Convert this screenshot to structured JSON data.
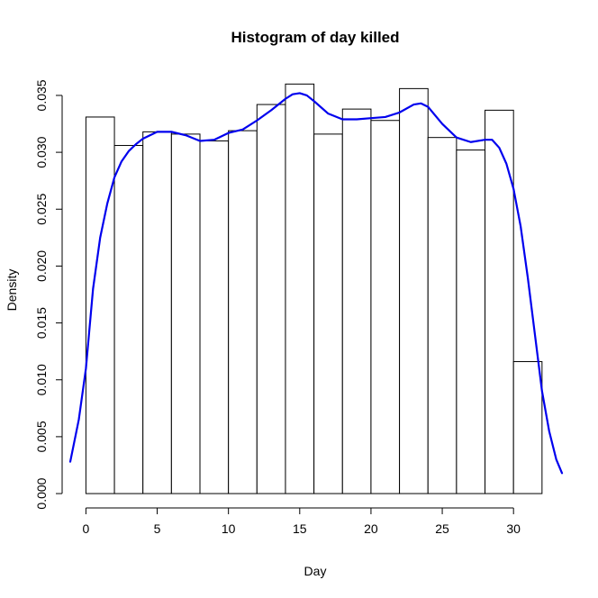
{
  "chart_data": {
    "type": "histogram",
    "title": "Histogram of day killed",
    "xlabel": "Day",
    "ylabel": "Density",
    "xlim": [
      -1.1,
      33.4
    ],
    "ylim": [
      -0.0015,
      0.0365
    ],
    "x_ticks": [
      0,
      5,
      10,
      15,
      20,
      25,
      30
    ],
    "x_tick_labels": [
      "0",
      "5",
      "10",
      "15",
      "20",
      "25",
      "30"
    ],
    "y_ticks": [
      0.0,
      0.005,
      0.01,
      0.015,
      0.02,
      0.025,
      0.03,
      0.035
    ],
    "y_tick_labels": [
      "0.000",
      "0.005",
      "0.010",
      "0.015",
      "0.020",
      "0.025",
      "0.030",
      "0.035"
    ],
    "bins": [
      {
        "x0": 0,
        "x1": 2,
        "density": 0.0331
      },
      {
        "x0": 2,
        "x1": 4,
        "density": 0.0306
      },
      {
        "x0": 4,
        "x1": 6,
        "density": 0.0318
      },
      {
        "x0": 6,
        "x1": 8,
        "density": 0.0316
      },
      {
        "x0": 8,
        "x1": 10,
        "density": 0.031
      },
      {
        "x0": 10,
        "x1": 12,
        "density": 0.0319
      },
      {
        "x0": 12,
        "x1": 14,
        "density": 0.0342
      },
      {
        "x0": 14,
        "x1": 16,
        "density": 0.036
      },
      {
        "x0": 16,
        "x1": 18,
        "density": 0.0316
      },
      {
        "x0": 18,
        "x1": 20,
        "density": 0.0338
      },
      {
        "x0": 20,
        "x1": 22,
        "density": 0.0328
      },
      {
        "x0": 22,
        "x1": 24,
        "density": 0.0356
      },
      {
        "x0": 24,
        "x1": 26,
        "density": 0.0313
      },
      {
        "x0": 26,
        "x1": 28,
        "density": 0.0302
      },
      {
        "x0": 28,
        "x1": 30,
        "density": 0.0337
      },
      {
        "x0": 30,
        "x1": 32,
        "density": 0.0116
      }
    ],
    "density_curve": {
      "color": "#0000ee",
      "x": [
        -1.1,
        -0.5,
        0,
        0.5,
        1,
        1.5,
        2,
        2.5,
        3,
        3.5,
        4,
        5,
        6,
        7,
        8,
        9,
        10,
        11,
        12,
        13,
        14,
        14.5,
        15,
        15.5,
        16,
        17,
        18,
        19,
        20,
        21,
        22,
        23,
        23.5,
        24,
        25,
        26,
        27,
        28,
        28.5,
        29,
        29.5,
        30,
        30.5,
        31,
        31.5,
        32,
        32.5,
        33,
        33.4
      ],
      "y": [
        0.0028,
        0.0065,
        0.011,
        0.018,
        0.0225,
        0.0255,
        0.0278,
        0.0292,
        0.0301,
        0.0307,
        0.0312,
        0.0318,
        0.0318,
        0.0315,
        0.031,
        0.0311,
        0.0317,
        0.032,
        0.0328,
        0.0337,
        0.0347,
        0.0351,
        0.0352,
        0.035,
        0.0345,
        0.0334,
        0.0329,
        0.0329,
        0.033,
        0.0331,
        0.0335,
        0.0342,
        0.0343,
        0.034,
        0.0325,
        0.0313,
        0.0309,
        0.0311,
        0.0311,
        0.0304,
        0.029,
        0.0268,
        0.0235,
        0.019,
        0.014,
        0.009,
        0.0055,
        0.003,
        0.0018
      ]
    }
  }
}
